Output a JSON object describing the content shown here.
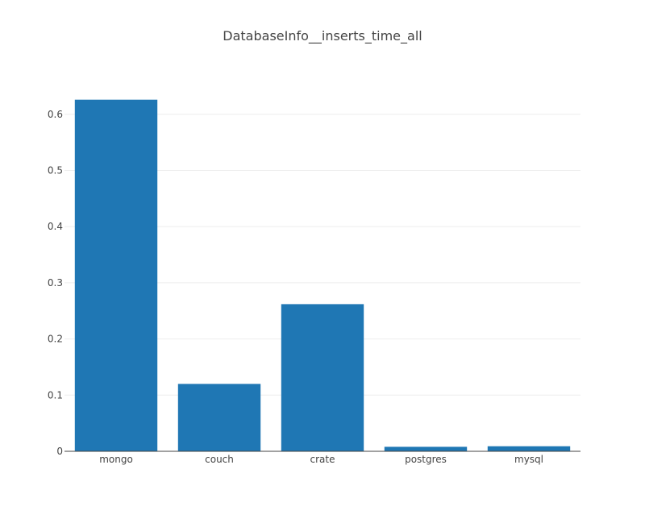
{
  "chart_data": {
    "type": "bar",
    "title": "DatabaseInfo__inserts_time_all",
    "xlabel": "",
    "ylabel": "",
    "categories": [
      "mongo",
      "couch",
      "crate",
      "postgres",
      "mysql"
    ],
    "values": [
      0.626,
      0.12,
      0.262,
      0.008,
      0.009
    ],
    "ylim": [
      0,
      0.66
    ],
    "yticks": [
      0,
      0.1,
      0.2,
      0.3,
      0.4,
      0.5,
      0.6
    ],
    "ytick_labels": [
      "0",
      "0.1",
      "0.2",
      "0.3",
      "0.4",
      "0.5",
      "0.6"
    ],
    "grid": true,
    "legend": "none",
    "bar_color": "#1f77b4"
  }
}
